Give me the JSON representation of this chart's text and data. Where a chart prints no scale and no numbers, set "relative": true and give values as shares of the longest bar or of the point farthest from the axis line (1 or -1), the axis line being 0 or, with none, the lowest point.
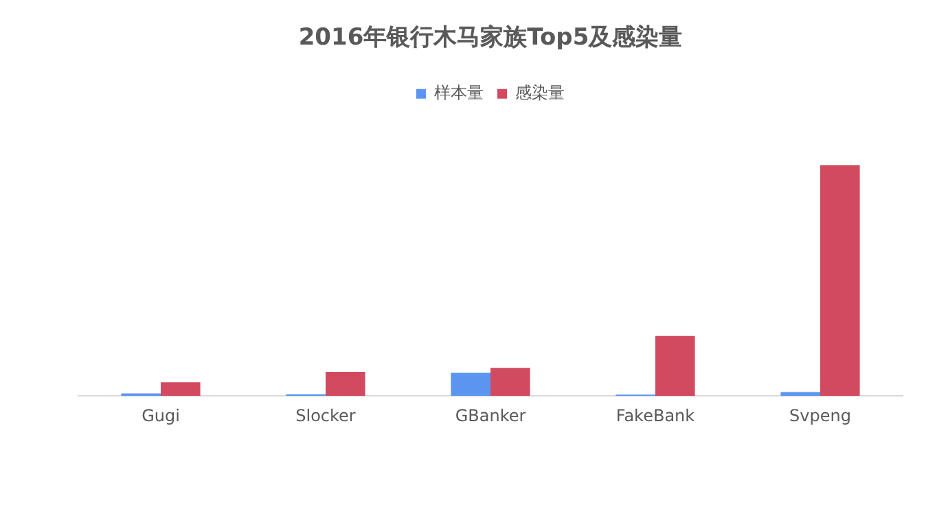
{
  "chart_data": {
    "type": "bar",
    "title": "2016年银行木马家族Top5及感染量",
    "categories": [
      "Gugi",
      "Slocker",
      "GBanker",
      "FakeBank",
      "Svpeng"
    ],
    "relative": true,
    "legend": "top",
    "grid": false,
    "series": [
      {
        "name": "样本量",
        "color": "#5b95f0",
        "values": [
          0.011,
          0.007,
          0.1,
          0.006,
          0.017
        ]
      },
      {
        "name": "感染量",
        "color": "#d24a60",
        "values": [
          0.059,
          0.105,
          0.122,
          0.26,
          1
        ]
      }
    ]
  }
}
